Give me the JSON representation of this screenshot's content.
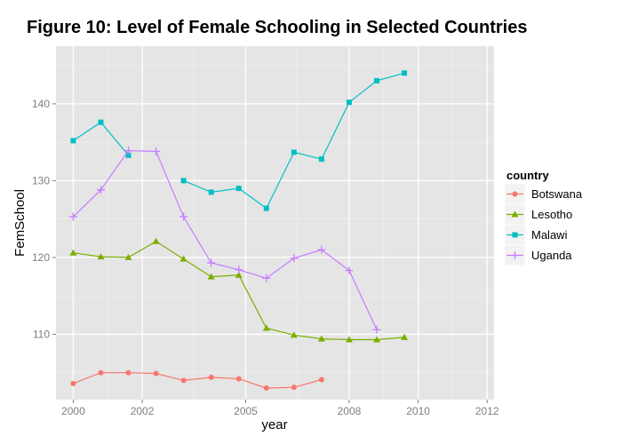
{
  "chart_data": {
    "type": "line",
    "title": "Figure 10: Level of Female Schooling in Selected Countries",
    "xlabel": "year",
    "ylabel": "FemSchool",
    "xlim": [
      1999.5,
      2012.2
    ],
    "ylim": [
      101.5,
      147.5
    ],
    "x_ticks": [
      2000,
      2002,
      2005,
      2008,
      2010,
      2012
    ],
    "y_ticks": [
      110,
      120,
      130,
      140
    ],
    "grid": true,
    "legend": {
      "title": "country",
      "position": "right"
    },
    "series": [
      {
        "name": "Botswana",
        "color": "#f8766d",
        "marker": "circle",
        "segments": [
          [
            {
              "x": 2000.0,
              "y": 103.6
            },
            {
              "x": 2000.8,
              "y": 105.0
            },
            {
              "x": 2001.6,
              "y": 105.0
            },
            {
              "x": 2002.4,
              "y": 104.9
            },
            {
              "x": 2003.2,
              "y": 104.0
            },
            {
              "x": 2004.0,
              "y": 104.4
            },
            {
              "x": 2004.8,
              "y": 104.2
            },
            {
              "x": 2005.6,
              "y": 103.0
            },
            {
              "x": 2006.4,
              "y": 103.1
            },
            {
              "x": 2007.2,
              "y": 104.1
            }
          ]
        ]
      },
      {
        "name": "Lesotho",
        "color": "#7cae00",
        "marker": "triangle",
        "segments": [
          [
            {
              "x": 2000.0,
              "y": 120.6
            },
            {
              "x": 2000.8,
              "y": 120.1
            },
            {
              "x": 2001.6,
              "y": 120.0
            },
            {
              "x": 2002.4,
              "y": 122.1
            },
            {
              "x": 2003.2,
              "y": 119.8
            },
            {
              "x": 2004.0,
              "y": 117.5
            },
            {
              "x": 2004.8,
              "y": 117.7
            },
            {
              "x": 2005.6,
              "y": 110.8
            },
            {
              "x": 2006.4,
              "y": 109.9
            },
            {
              "x": 2007.2,
              "y": 109.4
            },
            {
              "x": 2008.0,
              "y": 109.3
            },
            {
              "x": 2008.8,
              "y": 109.3
            },
            {
              "x": 2009.6,
              "y": 109.6
            }
          ]
        ]
      },
      {
        "name": "Malawi",
        "color": "#00bfc4",
        "marker": "square",
        "segments": [
          [
            {
              "x": 2000.0,
              "y": 135.2
            },
            {
              "x": 2000.8,
              "y": 137.6
            },
            {
              "x": 2001.6,
              "y": 133.3
            }
          ],
          [
            {
              "x": 2003.2,
              "y": 130.0
            },
            {
              "x": 2004.0,
              "y": 128.5
            },
            {
              "x": 2004.8,
              "y": 129.0
            },
            {
              "x": 2005.6,
              "y": 126.4
            },
            {
              "x": 2006.4,
              "y": 133.7
            },
            {
              "x": 2007.2,
              "y": 132.8
            },
            {
              "x": 2008.0,
              "y": 140.2
            },
            {
              "x": 2008.8,
              "y": 143.0
            },
            {
              "x": 2009.6,
              "y": 144.0
            }
          ]
        ]
      },
      {
        "name": "Uganda",
        "color": "#c77cff",
        "marker": "plus",
        "segments": [
          [
            {
              "x": 2000.0,
              "y": 125.3
            },
            {
              "x": 2000.8,
              "y": 128.8
            },
            {
              "x": 2001.6,
              "y": 133.9
            },
            {
              "x": 2002.4,
              "y": 133.8
            },
            {
              "x": 2003.2,
              "y": 125.3
            },
            {
              "x": 2004.0,
              "y": 119.3
            },
            {
              "x": 2004.8,
              "y": 118.4
            },
            {
              "x": 2005.6,
              "y": 117.3
            },
            {
              "x": 2006.4,
              "y": 119.9
            },
            {
              "x": 2007.2,
              "y": 121.0
            },
            {
              "x": 2008.0,
              "y": 118.3
            },
            {
              "x": 2008.8,
              "y": 110.6
            }
          ]
        ]
      }
    ]
  }
}
